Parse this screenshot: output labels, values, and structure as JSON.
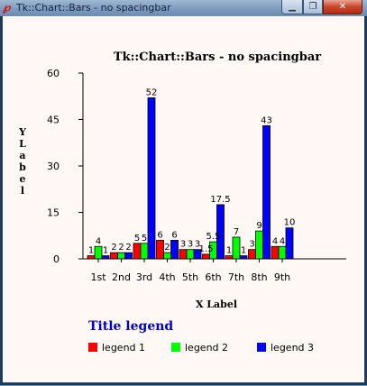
{
  "window": {
    "title": "Tk::Chart::Bars - no spacingbar",
    "icon": "tk-feather-icon",
    "minimize_glyph": "▁",
    "maximize_glyph": "❐",
    "close_glyph": "✕"
  },
  "chart_data": {
    "type": "bar",
    "title": "Tk::Chart::Bars - no spacingbar",
    "xlabel": "X Label",
    "ylabel": "YLabel",
    "categories": [
      "1st",
      "2nd",
      "3rd",
      "4th",
      "5th",
      "6th",
      "7th",
      "8th",
      "9th"
    ],
    "yticks": [
      "0",
      "15",
      "30",
      "45",
      "60"
    ],
    "ylim": [
      0,
      60
    ],
    "grid": false,
    "series": [
      {
        "name": "legend 1",
        "color": "#ff0000",
        "values": [
          1,
          2,
          5,
          6,
          3,
          1.5,
          1,
          3,
          4
        ]
      },
      {
        "name": "legend 2",
        "color": "#00ff00",
        "values": [
          4,
          2,
          5,
          2,
          3,
          5.5,
          7,
          9,
          4
        ]
      },
      {
        "name": "legend 3",
        "color": "#0000ff",
        "values": [
          1,
          2,
          52,
          6,
          3,
          17.5,
          1,
          43,
          10
        ]
      }
    ],
    "value_labels": [
      [
        "1",
        "2",
        "5",
        "6",
        "3",
        "1.5",
        "1",
        "3",
        "4"
      ],
      [
        "4",
        "2",
        "5",
        "2",
        "3",
        "5.5",
        "7",
        "9",
        "4"
      ],
      [
        "1",
        "2",
        "52",
        "6",
        "3",
        "17.5",
        "1",
        "43",
        "10"
      ]
    ],
    "legend": {
      "title": "Title legend",
      "placement": "bottom-left",
      "title_color": "#0000cc"
    }
  }
}
